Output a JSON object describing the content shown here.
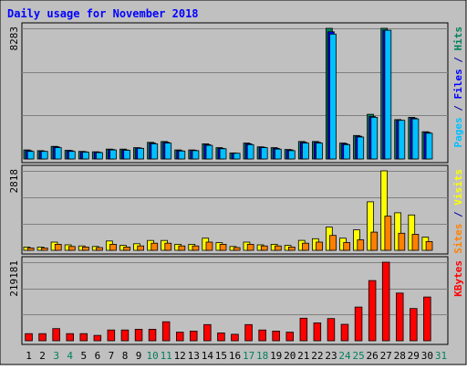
{
  "chart_data": {
    "type": "bar",
    "title": "Daily usage for November 2018",
    "days": [
      "1",
      "2",
      "3",
      "4",
      "5",
      "6",
      "7",
      "8",
      "9",
      "10",
      "11",
      "12",
      "13",
      "14",
      "15",
      "16",
      "17",
      "18",
      "19",
      "20",
      "21",
      "22",
      "23",
      "24",
      "25",
      "26",
      "27",
      "28",
      "29",
      "30",
      "31"
    ],
    "weekend_days": [
      "3",
      "4",
      "10",
      "11",
      "17",
      "18",
      "24",
      "25",
      "31"
    ],
    "panels": [
      {
        "id": "top",
        "max_label": "8283",
        "max": 8283,
        "series": [
          {
            "name": "Hits",
            "color": "#00805c",
            "values": [
              576,
              528,
              798,
              552,
              480,
              456,
              624,
              624,
              720,
              1056,
              1104,
              576,
              576,
              960,
              720,
              384,
              1008,
              768,
              720,
              600,
              1104,
              1104,
              8283,
              1008,
              1488,
              2832,
              8283,
              2496,
              2640,
              1728,
              0
            ]
          },
          {
            "name": "Files",
            "color": "#0000ff",
            "values": [
              528,
              480,
              768,
              528,
              456,
              432,
              600,
              576,
              696,
              1008,
              1056,
              528,
              552,
              912,
              672,
              360,
              960,
              744,
              672,
              576,
              1056,
              1056,
              8060,
              960,
              1440,
              2688,
              8160,
              2448,
              2592,
              1680,
              0
            ]
          },
          {
            "name": "Pages",
            "color": "#00c0ff",
            "values": [
              480,
              480,
              720,
              480,
              432,
              408,
              576,
              552,
              672,
              960,
              1008,
              504,
              528,
              864,
              648,
              360,
              912,
              720,
              624,
              528,
              1008,
              1008,
              7920,
              912,
              1392,
              2640,
              8160,
              2448,
              2544,
              1632,
              0
            ]
          }
        ],
        "side_labels": [
          {
            "text": "Pages",
            "color": "#00c0ff"
          },
          {
            "text": " / ",
            "color": "#0000a0"
          },
          {
            "text": "Files",
            "color": "#0000ff"
          },
          {
            "text": " / ",
            "color": "#0000a0"
          },
          {
            "text": "Hits",
            "color": "#00805c"
          }
        ]
      },
      {
        "id": "middle",
        "max_label": "2818",
        "max": 2818,
        "series": [
          {
            "name": "Visits",
            "color": "#ffff00",
            "values": [
              117,
              117,
              293,
              195,
              156,
              137,
              332,
              176,
              234,
              351,
              351,
              215,
              215,
              430,
              273,
              137,
              293,
              195,
              215,
              176,
              352,
              410,
              822,
              430,
              724,
              1720,
              2818,
              1331,
              1253,
              469,
              0
            ]
          },
          {
            "name": "Sites",
            "color": "#ff8000",
            "values": [
              80,
              80,
              215,
              137,
              117,
              98,
              215,
              117,
              156,
              254,
              254,
              156,
              156,
              293,
              215,
              98,
              215,
              156,
              156,
              117,
              254,
              293,
              528,
              274,
              371,
              645,
              1213,
              606,
              567,
              312,
              0
            ]
          }
        ],
        "side_labels": [
          {
            "text": "Sites",
            "color": "#ff8000"
          },
          {
            "text": " / ",
            "color": "#0000a0"
          },
          {
            "text": "Visits",
            "color": "#ffff00"
          }
        ]
      },
      {
        "id": "bottom",
        "max_label": "219181",
        "max": 219181,
        "series": [
          {
            "name": "KBytes",
            "color": "#ff0000",
            "values": [
              20000,
              20000,
              34000,
              20000,
              20000,
              15000,
              30000,
              30000,
              32000,
              32000,
              53000,
              24000,
              27000,
              45000,
              22000,
              18000,
              45000,
              30000,
              27000,
              24000,
              63000,
              50000,
              62000,
              46000,
              94000,
              168000,
              219181,
              133000,
              90000,
              122000,
              0
            ]
          }
        ],
        "side_labels": [
          {
            "text": "KBytes",
            "color": "#ff0000"
          }
        ]
      }
    ],
    "colors": {
      "background": "#c0c0c0",
      "title": "#0000ff",
      "max_label": "#000000",
      "weekday_label": "#000000",
      "weekend_label": "#00805c",
      "grid": "#808080"
    }
  }
}
